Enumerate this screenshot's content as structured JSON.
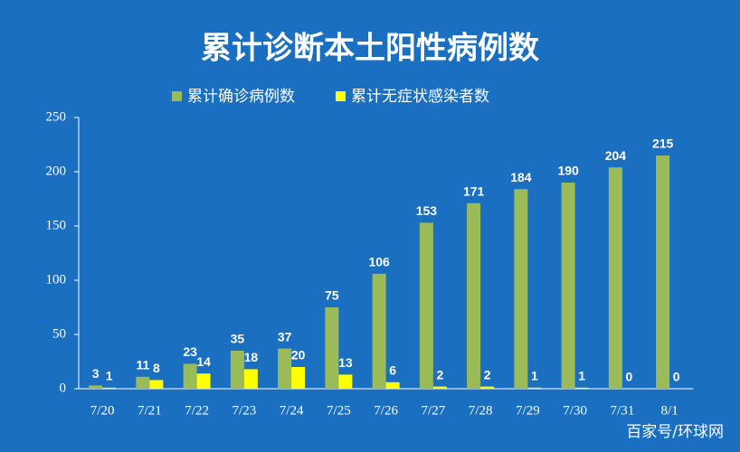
{
  "chart_data": {
    "type": "bar",
    "title": "累计诊断本土阳性病例数",
    "categories": [
      "7/20",
      "7/21",
      "7/22",
      "7/23",
      "7/24",
      "7/25",
      "7/26",
      "7/27",
      "7/28",
      "7/29",
      "7/30",
      "7/31",
      "8/1"
    ],
    "series": [
      {
        "name": "累计确诊病例数",
        "color": "#9bbb59",
        "values": [
          3,
          11,
          23,
          35,
          37,
          75,
          106,
          153,
          171,
          184,
          190,
          204,
          215
        ]
      },
      {
        "name": "累计无症状感染者数",
        "color": "#ffff00",
        "values": [
          1,
          8,
          14,
          18,
          20,
          13,
          6,
          2,
          2,
          1,
          1,
          0,
          0
        ]
      }
    ],
    "ylim": [
      0,
      250
    ],
    "yticks": [
      0,
      50,
      100,
      150,
      200,
      250
    ],
    "watermark": "百家号/环球网"
  }
}
